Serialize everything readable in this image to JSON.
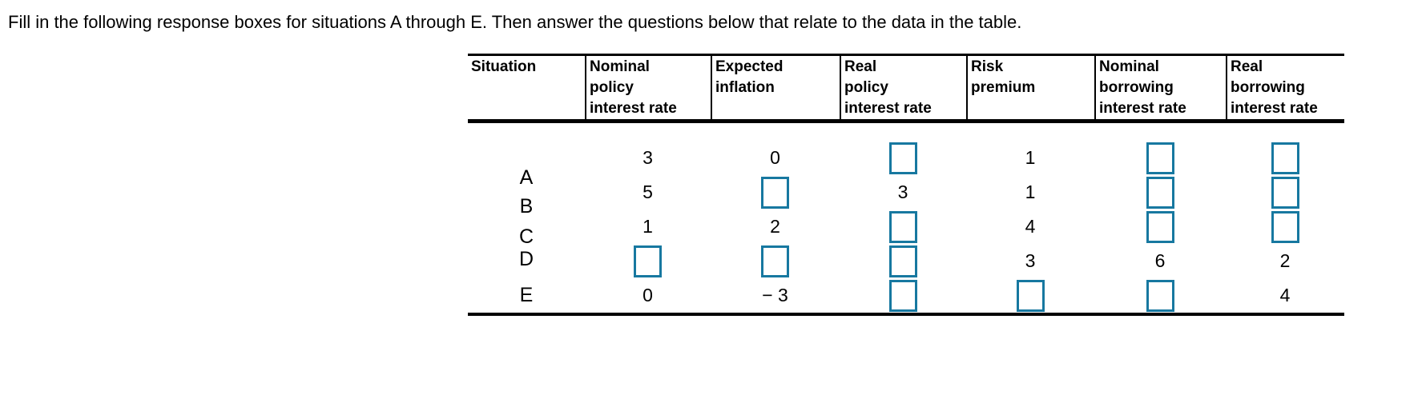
{
  "page": {
    "title": "Fill in the following response boxes for situations A through E. Then answer the questions below that relate to the data in the table."
  },
  "table": {
    "input_box_color": "#1778A0",
    "line_color": "#000000",
    "columns": [
      {
        "key": "situation",
        "lines": [
          "Situation"
        ]
      },
      {
        "key": "nominal-policy-interest-rate",
        "lines": [
          "Nominal",
          "policy",
          "interest rate"
        ]
      },
      {
        "key": "expected-inflation",
        "lines": [
          "Expected",
          "inflation"
        ]
      },
      {
        "key": "real-policy-interest-rate",
        "lines": [
          "Real",
          "policy",
          "interest rate"
        ]
      },
      {
        "key": "risk-premium",
        "lines": [
          "Risk",
          "premium"
        ]
      },
      {
        "key": "nominal-borrowing-interest-rate",
        "lines": [
          "Nominal",
          "borrowing",
          "interest rate"
        ]
      },
      {
        "key": "real-borrowing-interest-rate",
        "lines": [
          "Real",
          "borrowing",
          "interest rate"
        ]
      }
    ],
    "rows": [
      {
        "situation": "A",
        "cells": [
          {
            "text": "3"
          },
          {
            "text": "0"
          },
          {
            "input": true
          },
          {
            "text": "1"
          },
          {
            "input": true
          },
          {
            "input": true
          }
        ]
      },
      {
        "situation": "B",
        "cells": [
          {
            "text": "5"
          },
          {
            "input": true
          },
          {
            "text": "3"
          },
          {
            "text": "1"
          },
          {
            "input": true
          },
          {
            "input": true
          }
        ]
      },
      {
        "situation": "C",
        "cells": [
          {
            "text": "1"
          },
          {
            "text": "2"
          },
          {
            "input": true
          },
          {
            "text": "4"
          },
          {
            "input": true
          },
          {
            "input": true
          }
        ]
      },
      {
        "situation": "D",
        "cells": [
          {
            "input": true
          },
          {
            "input": true
          },
          {
            "input": true
          },
          {
            "text": "3"
          },
          {
            "text": "6"
          },
          {
            "text": "2"
          }
        ]
      },
      {
        "situation": "E",
        "cells": [
          {
            "text": "0"
          },
          {
            "text": "− 3"
          },
          {
            "input": true
          },
          {
            "input": true
          },
          {
            "input": true
          },
          {
            "text": "4"
          }
        ]
      }
    ]
  }
}
